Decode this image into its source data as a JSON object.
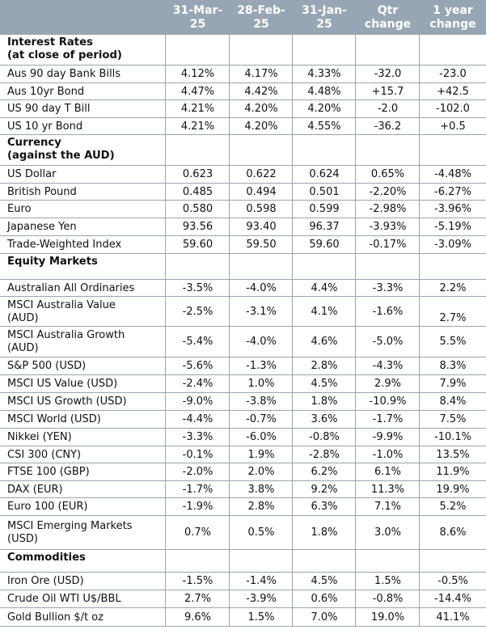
{
  "header": {
    "columns": [
      [
        "31-Mar-",
        "25"
      ],
      [
        "28-Feb-",
        "25"
      ],
      [
        "31-Jan-",
        "25"
      ],
      [
        "Qtr",
        "change"
      ],
      [
        "1 year",
        "change"
      ]
    ]
  },
  "rows": [
    {
      "type": "section",
      "lines": [
        "Interest Rates",
        "(at close of period)"
      ]
    },
    {
      "type": "data",
      "lines": [
        "Aus 90 day Bank Bills"
      ],
      "values": [
        "4.12%",
        "4.17%",
        "4.33%",
        "-32.0",
        "-23.0"
      ]
    },
    {
      "type": "data",
      "lines": [
        "Aus 10yr Bond"
      ],
      "values": [
        "4.47%",
        "4.42%",
        "4.48%",
        "+15.7",
        "+42.5"
      ]
    },
    {
      "type": "data",
      "lines": [
        "US 90 day T Bill"
      ],
      "values": [
        "4.21%",
        "4.20%",
        "4.20%",
        "-2.0",
        "-102.0"
      ]
    },
    {
      "type": "data",
      "lines": [
        "US 10 yr Bond"
      ],
      "values": [
        "4.21%",
        "4.20%",
        "4.55%",
        "-36.2",
        "+0.5"
      ]
    },
    {
      "type": "section",
      "lines": [
        "Currency",
        "(against the AUD)"
      ]
    },
    {
      "type": "data",
      "lines": [
        "US Dollar"
      ],
      "values": [
        "0.623",
        "0.622",
        "0.624",
        "0.65%",
        "-4.48%"
      ]
    },
    {
      "type": "data",
      "lines": [
        "British Pound"
      ],
      "values": [
        "0.485",
        "0.494",
        "0.501",
        "-2.20%",
        "-6.27%"
      ]
    },
    {
      "type": "data",
      "lines": [
        "Euro"
      ],
      "values": [
        "0.580",
        "0.598",
        "0.599",
        "-2.98%",
        "-3.96%"
      ]
    },
    {
      "type": "data",
      "lines": [
        "Japanese Yen"
      ],
      "values": [
        "93.56",
        "93.40",
        "96.37",
        "-3.93%",
        "-5.19%"
      ]
    },
    {
      "type": "data",
      "lines": [
        "Trade-Weighted Index"
      ],
      "values": [
        "59.60",
        "59.50",
        "59.60",
        "-0.17%",
        "-3.09%"
      ]
    },
    {
      "type": "section",
      "lines": [
        "Equity Markets"
      ]
    },
    {
      "type": "data",
      "lines": [
        "Australian All Ordinaries"
      ],
      "values": [
        "-3.5%",
        "-4.0%",
        "4.4%",
        "-3.3%",
        "2.2%"
      ]
    },
    {
      "type": "data",
      "lines": [
        "MSCI Australia Value",
        "(AUD)"
      ],
      "values": [
        "-2.5%",
        "-3.1%",
        "4.1%",
        "-1.6%",
        "2.7%"
      ]
    },
    {
      "type": "data",
      "lines": [
        "MSCI Australia Growth",
        "(AUD)"
      ],
      "values": [
        "-5.4%",
        "-4.0%",
        "4.6%",
        "-5.0%",
        "5.5%"
      ]
    },
    {
      "type": "data",
      "lines": [
        "S&P 500 (USD)"
      ],
      "values": [
        "-5.6%",
        "-1.3%",
        "2.8%",
        "-4.3%",
        "8.3%"
      ]
    },
    {
      "type": "data",
      "lines": [
        "MSCI US Value (USD)"
      ],
      "values": [
        "-2.4%",
        "1.0%",
        "4.5%",
        "2.9%",
        "7.9%"
      ]
    },
    {
      "type": "data",
      "lines": [
        "MSCI US Growth (USD)"
      ],
      "values": [
        "-9.0%",
        "-3.8%",
        "1.8%",
        "-10.9%",
        "8.4%"
      ]
    },
    {
      "type": "data",
      "lines": [
        "MSCI World (USD)"
      ],
      "values": [
        "-4.4%",
        "-0.7%",
        "3.6%",
        "-1.7%",
        "7.5%"
      ]
    },
    {
      "type": "data",
      "lines": [
        "Nikkei (YEN)"
      ],
      "values": [
        "-3.3%",
        "-6.0%",
        "-0.8%",
        "-9.9%",
        "-10.1%"
      ]
    },
    {
      "type": "data",
      "lines": [
        "CSI 300 (CNY)"
      ],
      "values": [
        "-0.1%",
        "1.9%",
        "-2.8%",
        "-1.0%",
        "13.5%"
      ]
    },
    {
      "type": "data",
      "lines": [
        "FTSE 100 (GBP)"
      ],
      "values": [
        "-2.0%",
        "2.0%",
        "6.2%",
        "6.1%",
        "11.9%"
      ]
    },
    {
      "type": "data",
      "lines": [
        "DAX (EUR)"
      ],
      "values": [
        "-1.7%",
        "3.8%",
        "9.2%",
        "11.3%",
        "19.9%"
      ]
    },
    {
      "type": "data",
      "lines": [
        "Euro 100 (EUR)"
      ],
      "values": [
        "-1.9%",
        "2.8%",
        "6.3%",
        "7.1%",
        "5.2%"
      ]
    },
    {
      "type": "data",
      "lines": [
        "MSCI Emerging Markets",
        "(USD)"
      ],
      "values": [
        "0.7%",
        "0.5%",
        "1.8%",
        "3.0%",
        "8.6%"
      ]
    },
    {
      "type": "section",
      "lines": [
        "Commodities"
      ]
    },
    {
      "type": "data",
      "lines": [
        "Iron Ore (USD)"
      ],
      "values": [
        "-1.5%",
        "-1.4%",
        "4.5%",
        "1.5%",
        "-0.5%"
      ]
    },
    {
      "type": "data",
      "lines": [
        "Crude Oil WTI U$/BBL"
      ],
      "values": [
        "2.7%",
        "-3.9%",
        "0.6%",
        "-0.8%",
        "-14.4%"
      ]
    },
    {
      "type": "data",
      "lines": [
        "Gold Bullion $/t oz"
      ],
      "values": [
        "9.6%",
        "1.5%",
        "7.0%",
        "19.0%",
        "41.1%"
      ]
    }
  ]
}
